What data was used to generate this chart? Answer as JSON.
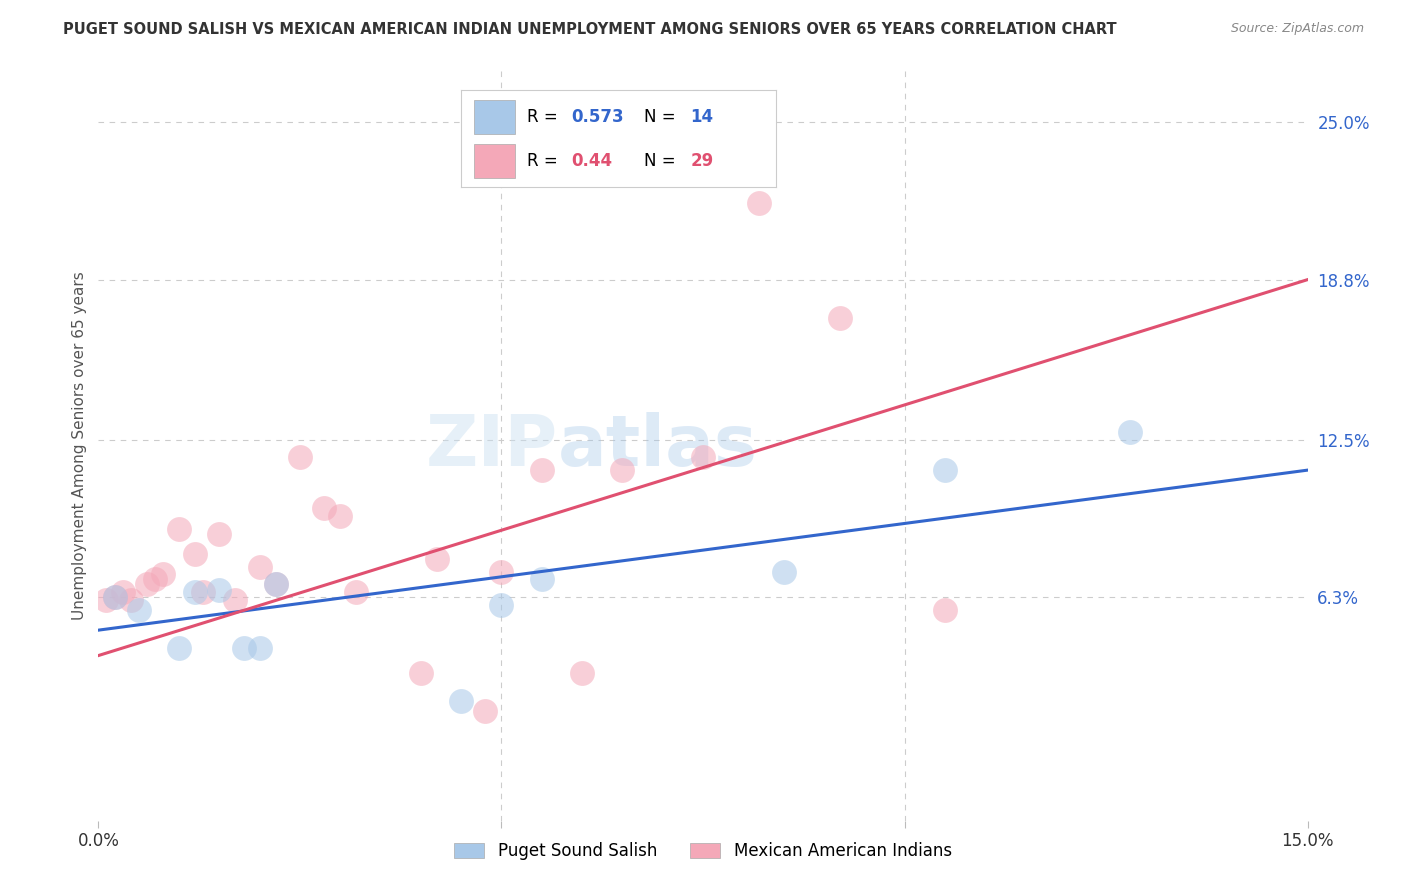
{
  "title": "PUGET SOUND SALISH VS MEXICAN AMERICAN INDIAN UNEMPLOYMENT AMONG SENIORS OVER 65 YEARS CORRELATION CHART",
  "source": "Source: ZipAtlas.com",
  "ylabel": "Unemployment Among Seniors over 65 years",
  "xlim": [
    0.0,
    0.15
  ],
  "ylim": [
    -0.025,
    0.27
  ],
  "xticks": [
    0.0,
    0.05,
    0.1,
    0.15
  ],
  "xtick_labels": [
    "0.0%",
    "",
    "",
    "15.0%"
  ],
  "ytick_labels_right": [
    "6.3%",
    "12.5%",
    "18.8%",
    "25.0%"
  ],
  "ytick_values_right": [
    0.063,
    0.125,
    0.188,
    0.25
  ],
  "blue_R": 0.573,
  "blue_N": 14,
  "pink_R": 0.44,
  "pink_N": 29,
  "blue_color": "#a8c8e8",
  "pink_color": "#f4a8b8",
  "blue_line_color": "#3366cc",
  "pink_line_color": "#e05070",
  "blue_scatter_x": [
    0.002,
    0.005,
    0.01,
    0.012,
    0.015,
    0.018,
    0.02,
    0.022,
    0.045,
    0.05,
    0.055,
    0.085,
    0.105,
    0.128
  ],
  "blue_scatter_y": [
    0.063,
    0.058,
    0.043,
    0.065,
    0.066,
    0.043,
    0.043,
    0.068,
    0.022,
    0.06,
    0.07,
    0.073,
    0.113,
    0.128
  ],
  "pink_scatter_x": [
    0.001,
    0.002,
    0.003,
    0.004,
    0.006,
    0.007,
    0.008,
    0.01,
    0.012,
    0.013,
    0.015,
    0.017,
    0.02,
    0.022,
    0.025,
    0.028,
    0.03,
    0.032,
    0.04,
    0.042,
    0.048,
    0.05,
    0.055,
    0.06,
    0.065,
    0.075,
    0.082,
    0.092,
    0.105
  ],
  "pink_scatter_y": [
    0.062,
    0.063,
    0.065,
    0.062,
    0.068,
    0.07,
    0.072,
    0.09,
    0.08,
    0.065,
    0.088,
    0.062,
    0.075,
    0.068,
    0.118,
    0.098,
    0.095,
    0.065,
    0.033,
    0.078,
    0.018,
    0.073,
    0.113,
    0.033,
    0.113,
    0.118,
    0.218,
    0.173,
    0.058
  ],
  "blue_line_x0": 0.0,
  "blue_line_y0": 0.05,
  "blue_line_x1": 0.15,
  "blue_line_y1": 0.113,
  "pink_line_x0": 0.0,
  "pink_line_y0": 0.04,
  "pink_line_x1": 0.15,
  "pink_line_y1": 0.188,
  "watermark_text": "ZIPatlas",
  "legend_label_blue": "Puget Sound Salish",
  "legend_label_pink": "Mexican American Indians",
  "background_color": "#ffffff",
  "grid_color": "#cccccc"
}
